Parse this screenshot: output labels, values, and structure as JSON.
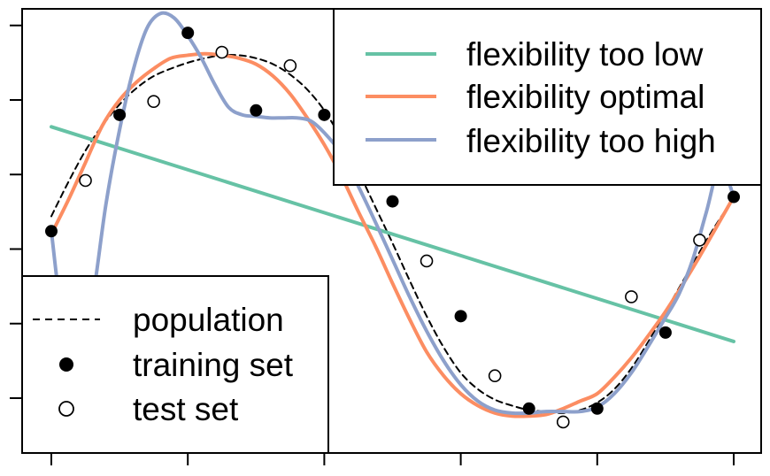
{
  "chart_data": {
    "type": "line",
    "xlim": [
      0,
      10
    ],
    "ylim": [
      -1.35,
      1.52
    ],
    "x_ticks": [
      0,
      2,
      4,
      6,
      8,
      10
    ],
    "y_ticks": [
      -1.0,
      -0.5,
      0,
      0.5,
      1.0,
      1.5
    ],
    "tick_labels_shown": false,
    "grid": false,
    "legends": [
      {
        "placement": "top-right",
        "entries": [
          {
            "label": "flexibility too low",
            "color": "#66c2a5"
          },
          {
            "label": "flexibility optimal",
            "color": "#fc8d62"
          },
          {
            "label": "flexibility too high",
            "color": "#8da0cb"
          }
        ]
      },
      {
        "placement": "bottom-left",
        "entries": [
          {
            "label": "population",
            "style": "dashed-line"
          },
          {
            "label": "training set",
            "style": "filled-circle"
          },
          {
            "label": "test set",
            "style": "open-circle"
          }
        ]
      }
    ],
    "series": [
      {
        "name": "population",
        "style": "dashed",
        "color": "#000000",
        "x": [
          0,
          0.25,
          0.5,
          0.75,
          1,
          1.25,
          1.5,
          1.75,
          2,
          2.25,
          2.5,
          2.75,
          3,
          3.25,
          3.5,
          3.75,
          4,
          4.25,
          4.5,
          4.75,
          5,
          5.25,
          5.5,
          5.75,
          6,
          6.25,
          6.5,
          6.75,
          7,
          7.25,
          7.5,
          7.75,
          8,
          8.25,
          8.5,
          8.75,
          9,
          9.25,
          9.5,
          9.75,
          10
        ],
        "y": [
          0.22,
          0.45,
          0.66,
          0.83,
          0.97,
          1.08,
          1.16,
          1.21,
          1.25,
          1.28,
          1.3,
          1.3,
          1.28,
          1.24,
          1.17,
          1.07,
          0.93,
          0.74,
          0.52,
          0.28,
          0.04,
          -0.21,
          -0.45,
          -0.66,
          -0.83,
          -0.94,
          -1.01,
          -1.05,
          -1.08,
          -1.09,
          -1.1,
          -1.08,
          -1.03,
          -0.94,
          -0.8,
          -0.62,
          -0.42,
          -0.22,
          -0.02,
          0.17,
          0.34
        ]
      },
      {
        "name": "flexibility too low",
        "color": "#66c2a5",
        "x": [
          0,
          10
        ],
        "y": [
          0.82,
          -0.62
        ]
      },
      {
        "name": "flexibility optimal",
        "color": "#fc8d62",
        "x": [
          0,
          0.25,
          0.5,
          0.75,
          1,
          1.25,
          1.5,
          1.75,
          2,
          2.25,
          2.5,
          2.75,
          3,
          3.25,
          3.5,
          3.75,
          4,
          4.25,
          4.5,
          4.75,
          5,
          5.25,
          5.5,
          5.75,
          6,
          6.25,
          6.5,
          6.75,
          7,
          7.25,
          7.5,
          7.75,
          8,
          8.25,
          8.5,
          8.75,
          9,
          9.25,
          9.5,
          9.75,
          10
        ],
        "y": [
          0.1,
          0.33,
          0.58,
          0.83,
          1.0,
          1.12,
          1.21,
          1.28,
          1.3,
          1.31,
          1.3,
          1.28,
          1.24,
          1.16,
          1.04,
          0.88,
          0.7,
          0.49,
          0.25,
          0.02,
          -0.23,
          -0.47,
          -0.69,
          -0.85,
          -0.97,
          -1.05,
          -1.1,
          -1.12,
          -1.12,
          -1.11,
          -1.07,
          -1.02,
          -0.97,
          -0.86,
          -0.73,
          -0.58,
          -0.42,
          -0.24,
          -0.05,
          0.15,
          0.35
        ]
      },
      {
        "name": "flexibility too high",
        "color": "#8da0cb",
        "x": [
          0,
          0.2,
          0.4,
          0.6,
          0.8,
          1,
          1.2,
          1.4,
          1.6,
          1.8,
          2,
          2.2,
          2.4,
          2.6,
          2.8,
          3,
          3.2,
          3.4,
          3.6,
          3.8,
          4,
          4.25,
          4.5,
          4.75,
          5,
          5.25,
          5.5,
          5.75,
          6,
          6.25,
          6.5,
          6.75,
          7,
          7.25,
          7.5,
          7.75,
          8,
          8.25,
          8.5,
          8.75,
          9,
          9.2,
          9.4,
          9.6,
          9.8,
          10
        ],
        "y": [
          0.12,
          -0.6,
          -0.75,
          -0.35,
          0.3,
          0.8,
          1.2,
          1.48,
          1.58,
          1.55,
          1.43,
          1.28,
          1.1,
          0.95,
          0.9,
          0.89,
          0.88,
          0.88,
          0.88,
          0.86,
          0.78,
          0.64,
          0.42,
          0.18,
          -0.07,
          -0.32,
          -0.55,
          -0.75,
          -0.91,
          -1.02,
          -1.08,
          -1.1,
          -1.1,
          -1.09,
          -1.09,
          -1.09,
          -1.06,
          -0.97,
          -0.83,
          -0.65,
          -0.46,
          -0.3,
          -0.07,
          0.25,
          0.56,
          0.35
        ]
      },
      {
        "name": "training set",
        "style": "filled-circle",
        "x": [
          0,
          1,
          2,
          3,
          4,
          5,
          6,
          7,
          8,
          9,
          10
        ],
        "y": [
          0.12,
          0.9,
          1.45,
          0.93,
          0.9,
          0.32,
          -0.45,
          -1.07,
          -1.07,
          -0.56,
          0.35
        ]
      },
      {
        "name": "test set",
        "style": "open-circle",
        "x": [
          0.5,
          1.5,
          2.5,
          3.5,
          4.5,
          5.5,
          6.5,
          7.5,
          8.5,
          9.5
        ],
        "y": [
          0.46,
          0.99,
          1.32,
          1.23,
          0.63,
          -0.08,
          -0.85,
          -1.16,
          -0.32,
          0.06
        ]
      }
    ]
  }
}
